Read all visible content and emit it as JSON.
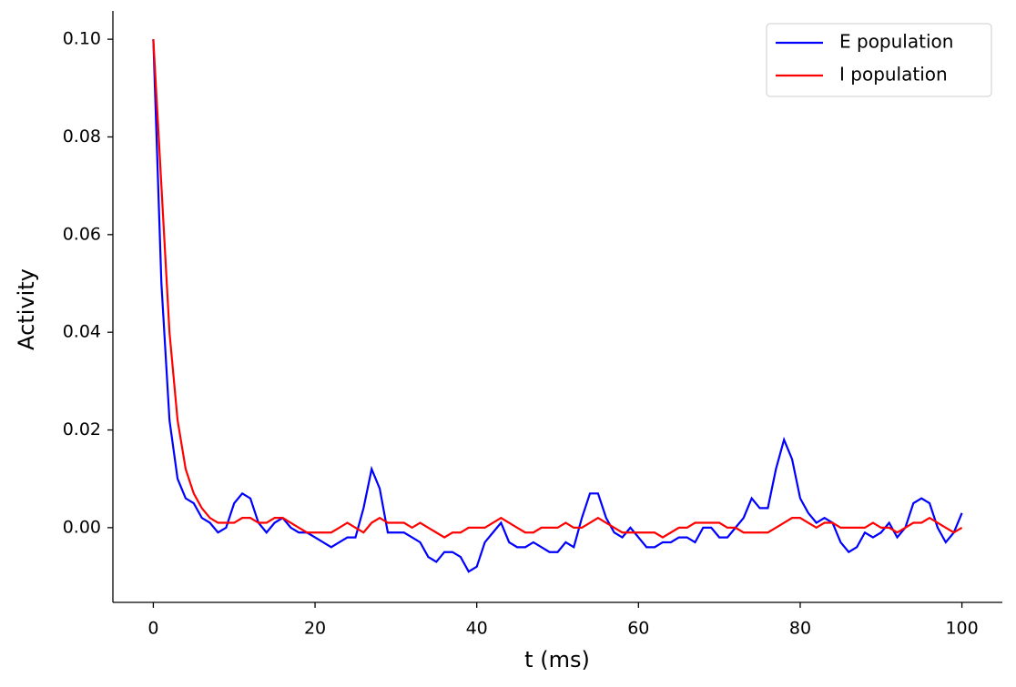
{
  "chart_data": {
    "type": "line",
    "x_label": "t (ms)",
    "y_label": "Activity",
    "x": [
      0,
      1,
      2,
      3,
      4,
      5,
      6,
      7,
      8,
      9,
      10,
      11,
      12,
      13,
      14,
      15,
      16,
      17,
      18,
      19,
      20,
      21,
      22,
      23,
      24,
      25,
      26,
      27,
      28,
      29,
      30,
      31,
      32,
      33,
      34,
      35,
      36,
      37,
      38,
      39,
      40,
      41,
      42,
      43,
      44,
      45,
      46,
      47,
      48,
      49,
      50,
      51,
      52,
      53,
      54,
      55,
      56,
      57,
      58,
      59,
      60,
      61,
      62,
      63,
      64,
      65,
      66,
      67,
      68,
      69,
      70,
      71,
      72,
      73,
      74,
      75,
      76,
      77,
      78,
      79,
      80,
      81,
      82,
      83,
      84,
      85,
      86,
      87,
      88,
      89,
      90,
      91,
      92,
      93,
      94,
      95,
      96,
      97,
      98,
      99,
      100
    ],
    "series": [
      {
        "name": "E population",
        "color": "#0000ff",
        "values": [
          0.1,
          0.05,
          0.022,
          0.01,
          0.006,
          0.005,
          0.002,
          0.001,
          -0.001,
          0.0,
          0.005,
          0.007,
          0.006,
          0.001,
          -0.001,
          0.001,
          0.002,
          0.0,
          -0.001,
          -0.001,
          -0.002,
          -0.003,
          -0.004,
          -0.003,
          -0.002,
          -0.002,
          0.004,
          0.012,
          0.008,
          -0.001,
          -0.001,
          -0.001,
          -0.002,
          -0.003,
          -0.006,
          -0.007,
          -0.005,
          -0.005,
          -0.006,
          -0.009,
          -0.008,
          -0.003,
          -0.001,
          0.001,
          -0.003,
          -0.004,
          -0.004,
          -0.003,
          -0.004,
          -0.005,
          -0.005,
          -0.003,
          -0.004,
          0.002,
          0.007,
          0.007,
          0.002,
          -0.001,
          -0.002,
          0.0,
          -0.002,
          -0.004,
          -0.004,
          -0.003,
          -0.003,
          -0.002,
          -0.002,
          -0.003,
          0.0,
          0.0,
          -0.002,
          -0.002,
          0.0,
          0.002,
          0.006,
          0.004,
          0.004,
          0.012,
          0.018,
          0.014,
          0.006,
          0.003,
          0.001,
          0.002,
          0.001,
          -0.003,
          -0.005,
          -0.004,
          -0.001,
          -0.002,
          -0.001,
          0.001,
          -0.002,
          0.0,
          0.005,
          0.006,
          0.005,
          0.0,
          -0.003,
          -0.001,
          0.003
        ]
      },
      {
        "name": "I population",
        "color": "#ff0000",
        "values": [
          0.1,
          0.07,
          0.04,
          0.022,
          0.012,
          0.007,
          0.004,
          0.002,
          0.001,
          0.001,
          0.001,
          0.002,
          0.002,
          0.001,
          0.001,
          0.002,
          0.002,
          0.001,
          0.0,
          -0.001,
          -0.001,
          -0.001,
          -0.001,
          0.0,
          0.001,
          0.0,
          -0.001,
          0.001,
          0.002,
          0.001,
          0.001,
          0.001,
          0.0,
          0.001,
          0.0,
          -0.001,
          -0.002,
          -0.001,
          -0.001,
          0.0,
          0.0,
          0.0,
          0.001,
          0.002,
          0.001,
          0.0,
          -0.001,
          -0.001,
          0.0,
          0.0,
          0.0,
          0.001,
          0.0,
          0.0,
          0.001,
          0.002,
          0.001,
          0.0,
          -0.001,
          -0.001,
          -0.001,
          -0.001,
          -0.001,
          -0.002,
          -0.001,
          0.0,
          0.0,
          0.001,
          0.001,
          0.001,
          0.001,
          0.0,
          0.0,
          -0.001,
          -0.001,
          -0.001,
          -0.001,
          0.0,
          0.001,
          0.002,
          0.002,
          0.001,
          0.0,
          0.001,
          0.001,
          0.0,
          0.0,
          0.0,
          0.0,
          0.001,
          0.0,
          0.0,
          -0.001,
          0.0,
          0.001,
          0.001,
          0.002,
          0.001,
          0.0,
          -0.001,
          0.0
        ]
      }
    ],
    "xlim": [
      -5,
      105
    ],
    "ylim": [
      -0.0153,
      0.1058
    ],
    "xticks": [
      0,
      20,
      40,
      60,
      80,
      100
    ],
    "yticks": [
      {
        "value": 0,
        "label": "0.00"
      },
      {
        "value": 0.02,
        "label": "0.02"
      },
      {
        "value": 0.04,
        "label": "0.04"
      },
      {
        "value": 0.06,
        "label": "0.06"
      },
      {
        "value": 0.08,
        "label": "0.08"
      },
      {
        "value": 0.1,
        "label": "0.10"
      }
    ],
    "legend": "upper right"
  }
}
